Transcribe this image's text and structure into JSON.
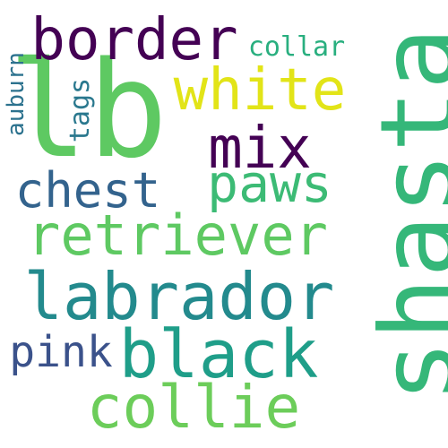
{
  "words": {
    "shasta": {
      "text": "shasta",
      "color": "#35b779",
      "orientation": "vertical"
    },
    "lb": {
      "text": "lb",
      "color": "#5ec962",
      "orientation": "horizontal"
    },
    "border": {
      "text": "border",
      "color": "#440154",
      "orientation": "horizontal"
    },
    "white": {
      "text": "white",
      "color": "#e2e418",
      "orientation": "horizontal"
    },
    "mix": {
      "text": "mix",
      "color": "#440154",
      "orientation": "horizontal"
    },
    "collar": {
      "text": "collar",
      "color": "#29af7f",
      "orientation": "horizontal"
    },
    "tags": {
      "text": "tags",
      "color": "#2a788e",
      "orientation": "vertical"
    },
    "auburn": {
      "text": "auburn",
      "color": "#2c728e",
      "orientation": "vertical"
    },
    "chest": {
      "text": "chest",
      "color": "#33638d",
      "orientation": "horizontal"
    },
    "paws": {
      "text": "paws",
      "color": "#3cbb75",
      "orientation": "horizontal"
    },
    "retriever": {
      "text": "retriever",
      "color": "#5ec962",
      "orientation": "horizontal"
    },
    "labrador": {
      "text": "labrador",
      "color": "#238a8d",
      "orientation": "horizontal"
    },
    "pink": {
      "text": "pink",
      "color": "#3b528b",
      "orientation": "horizontal"
    },
    "black": {
      "text": "black",
      "color": "#1f9e89",
      "orientation": "horizontal"
    },
    "collie": {
      "text": "collie",
      "color": "#6ccd5a",
      "orientation": "horizontal"
    }
  },
  "background": "#ffffff"
}
